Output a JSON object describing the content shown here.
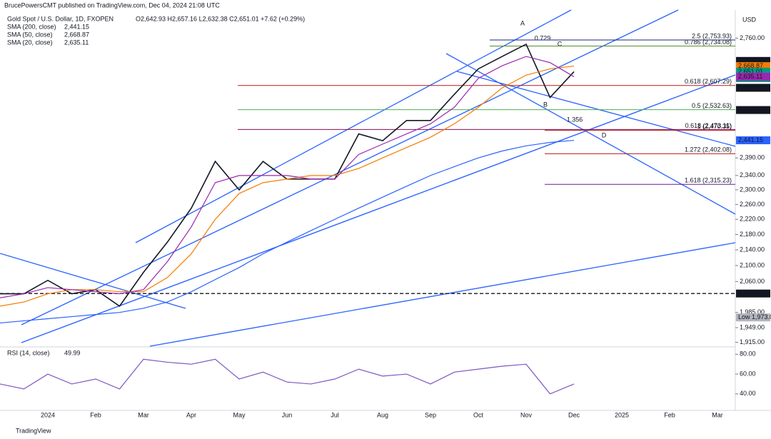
{
  "header": {
    "publisher": "BrucePowersCMT published on TradingView.com, Dec 04, 2024 21:08 UTC",
    "symbol": "Gold Spot / U.S. Dollar, 1D, FXOPEN",
    "ohlc": "O2,642.93 H2,657.16 L2,632.38 C2,651.01 +7.62 (+0.29%)",
    "currency": "USD",
    "footer": "TradingView"
  },
  "chart_data": [
    {
      "type": "line",
      "log_scale": true,
      "categories": [
        null,
        null,
        "2024",
        null,
        "Feb",
        null,
        "Mar",
        null,
        "Apr",
        null,
        "May",
        null,
        "Jun",
        null,
        "Jul",
        null,
        "Aug",
        null,
        "Sep",
        null,
        "Oct",
        null,
        "Nov",
        null,
        "Dec",
        null,
        "2025",
        null,
        "Feb",
        null,
        "Mar"
      ],
      "ylim": [
        1906,
        2855
      ],
      "yticks": [
        {
          "value": 2760,
          "label": "2,760.00"
        },
        {
          "value": 2390,
          "label": "2,390.00"
        },
        {
          "value": 2340,
          "label": "2,340.00"
        },
        {
          "value": 2300,
          "label": "2,300.00"
        },
        {
          "value": 2260,
          "label": "2,260.00"
        },
        {
          "value": 2220,
          "label": "2,220.00"
        },
        {
          "value": 2180,
          "label": "2,180.00"
        },
        {
          "value": 2140,
          "label": "2,140.00"
        },
        {
          "value": 2100,
          "label": "2,100.00"
        },
        {
          "value": 2060,
          "label": "2,060.00"
        },
        {
          "value": 1985,
          "label": "1,985.00"
        },
        {
          "value": 1949,
          "label": "1,949.00"
        },
        {
          "value": 1915,
          "label": "1,915.00"
        }
      ],
      "series": [
        {
          "name": "Gold Spot",
          "color": "#131722",
          "values": [
            2030,
            2030,
            2063,
            2030,
            2040,
            2000,
            2083,
            2160,
            2250,
            2380,
            2300,
            2380,
            2330,
            2330,
            2330,
            2460,
            2440,
            2500,
            2500,
            2580,
            2660,
            2700,
            2740,
            2570,
            2651.01,
            null,
            null,
            null,
            null,
            null,
            null
          ]
        },
        {
          "name": "SMA (200, close)",
          "value_label": "2,441.15",
          "color": "#2962ff",
          "values": [
            1960,
            1965,
            1970,
            1975,
            1980,
            1985,
            1995,
            2010,
            2035,
            2065,
            2095,
            2130,
            2160,
            2190,
            2220,
            2250,
            2280,
            2310,
            2340,
            2365,
            2390,
            2410,
            2425,
            2435,
            2441.15,
            null,
            null,
            null,
            null,
            null,
            null
          ]
        },
        {
          "name": "SMA (50, close)",
          "value_label": "2,668.87",
          "color": "#f57c00",
          "values": [
            2000,
            2010,
            2030,
            2040,
            2040,
            2035,
            2035,
            2070,
            2130,
            2220,
            2290,
            2320,
            2330,
            2340,
            2340,
            2360,
            2390,
            2420,
            2450,
            2490,
            2540,
            2600,
            2640,
            2660,
            2668.87,
            null,
            null,
            null,
            null,
            null,
            null
          ]
        },
        {
          "name": "SMA (20, close)",
          "value_label": "2,635.11",
          "color": "#9c27b0",
          "values": [
            2020,
            2030,
            2045,
            2040,
            2035,
            2030,
            2040,
            2110,
            2200,
            2320,
            2340,
            2340,
            2340,
            2330,
            2330,
            2400,
            2430,
            2460,
            2490,
            2540,
            2630,
            2670,
            2700,
            2680,
            2635.11,
            null,
            null,
            null,
            null,
            null,
            null
          ]
        }
      ],
      "price_tags": [
        {
          "value": 2685.56,
          "label": "2,685.56",
          "color": "#131722"
        },
        {
          "value": 2668.87,
          "label": "2,668.87",
          "color": "#f57c00"
        },
        {
          "value": 2651.01,
          "label": "2,651.01",
          "sub": "50:21",
          "color": "#089981"
        },
        {
          "value": 2635.11,
          "label": "2,635.11",
          "color": "#9c27b0"
        },
        {
          "value": 2600.14,
          "label": "2,600.14",
          "color": "#131722"
        },
        {
          "value": 2531.63,
          "label": "2,531.63",
          "color": "#131722"
        },
        {
          "value": 2441.15,
          "label": "2,441.15",
          "color": "#2962ff"
        },
        {
          "value": 2030.6,
          "label": "2,030.60",
          "color": "#131722"
        },
        {
          "value": 1973,
          "label": "Low 1,973.00",
          "color": "#b2b5be"
        }
      ],
      "levels": [
        {
          "value": 2753.93,
          "label": "2.5 (2,753.93)",
          "color": "#1a237e"
        },
        {
          "value": 2734.08,
          "label": "0.786 (2,734.08)",
          "color": "#558b2f"
        },
        {
          "value": 2607.29,
          "label": "0.618 (2,607.29)",
          "color": "#b71c1c"
        },
        {
          "value": 2532.63,
          "label": "0.5 (2,532.63)",
          "color": "#4caf50"
        },
        {
          "value": 2473.11,
          "label": "0.618 (2,473.11)",
          "color": "#880e4f"
        },
        {
          "value": 2470.35,
          "label": "1 (2,470.35)",
          "color": "#b71c1c"
        },
        {
          "value": 2402.08,
          "label": "1.272 (2,402.08)",
          "color": "#b71c1c"
        },
        {
          "value": 2315.23,
          "label": "1.618 (2,315.23)",
          "color": "#6a1b9a"
        }
      ],
      "points": [
        "A",
        "B",
        "C",
        "D"
      ],
      "ratios": [
        "0.729",
        "1.356"
      ]
    },
    {
      "type": "line",
      "title": "RSI (14, close)",
      "value_label": "49.99",
      "ylim": [
        24,
        86
      ],
      "yticks": [
        {
          "value": 40,
          "label": "40.00"
        },
        {
          "value": 60,
          "label": "60.00"
        },
        {
          "value": 80,
          "label": "80.00"
        }
      ],
      "series": [
        {
          "name": "RSI",
          "color": "#7e57c2",
          "values": [
            50,
            45,
            60,
            50,
            55,
            45,
            75,
            72,
            70,
            75,
            55,
            62,
            52,
            50,
            55,
            65,
            58,
            60,
            50,
            62,
            65,
            68,
            70,
            40,
            49.99,
            null,
            null,
            null,
            null,
            null,
            null
          ]
        }
      ]
    }
  ]
}
